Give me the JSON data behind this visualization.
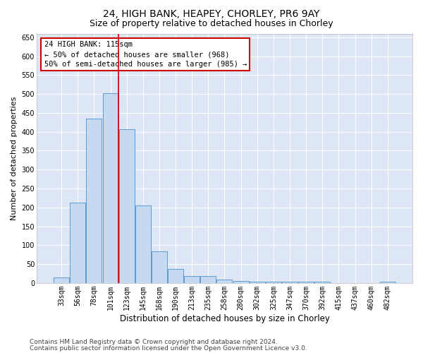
{
  "title1": "24, HIGH BANK, HEAPEY, CHORLEY, PR6 9AY",
  "title2": "Size of property relative to detached houses in Chorley",
  "xlabel": "Distribution of detached houses by size in Chorley",
  "ylabel": "Number of detached properties",
  "categories": [
    "33sqm",
    "56sqm",
    "78sqm",
    "101sqm",
    "123sqm",
    "145sqm",
    "168sqm",
    "190sqm",
    "213sqm",
    "235sqm",
    "258sqm",
    "280sqm",
    "302sqm",
    "325sqm",
    "347sqm",
    "370sqm",
    "392sqm",
    "415sqm",
    "437sqm",
    "460sqm",
    "482sqm"
  ],
  "values": [
    15,
    212,
    435,
    502,
    407,
    205,
    83,
    38,
    18,
    18,
    10,
    5,
    4,
    4,
    4,
    4,
    4,
    0,
    0,
    0,
    4
  ],
  "bar_color": "#c5d9f1",
  "bar_edge_color": "#5b9bd5",
  "background_color": "#ffffff",
  "plot_bg_color": "#dce6f5",
  "grid_color": "#ffffff",
  "annotation_text": "24 HIGH BANK: 115sqm\n← 50% of detached houses are smaller (968)\n50% of semi-detached houses are larger (985) →",
  "annotation_box_color": "#ffffff",
  "annotation_box_edge": "#cc0000",
  "vline_color": "#cc0000",
  "vline_x": 3.475,
  "ylim": [
    0,
    660
  ],
  "yticks": [
    0,
    50,
    100,
    150,
    200,
    250,
    300,
    350,
    400,
    450,
    500,
    550,
    600,
    650
  ],
  "footer1": "Contains HM Land Registry data © Crown copyright and database right 2024.",
  "footer2": "Contains public sector information licensed under the Open Government Licence v3.0.",
  "title1_fontsize": 10,
  "title2_fontsize": 9,
  "xlabel_fontsize": 8.5,
  "ylabel_fontsize": 8,
  "tick_fontsize": 7,
  "annot_fontsize": 7.5,
  "footer_fontsize": 6.5
}
